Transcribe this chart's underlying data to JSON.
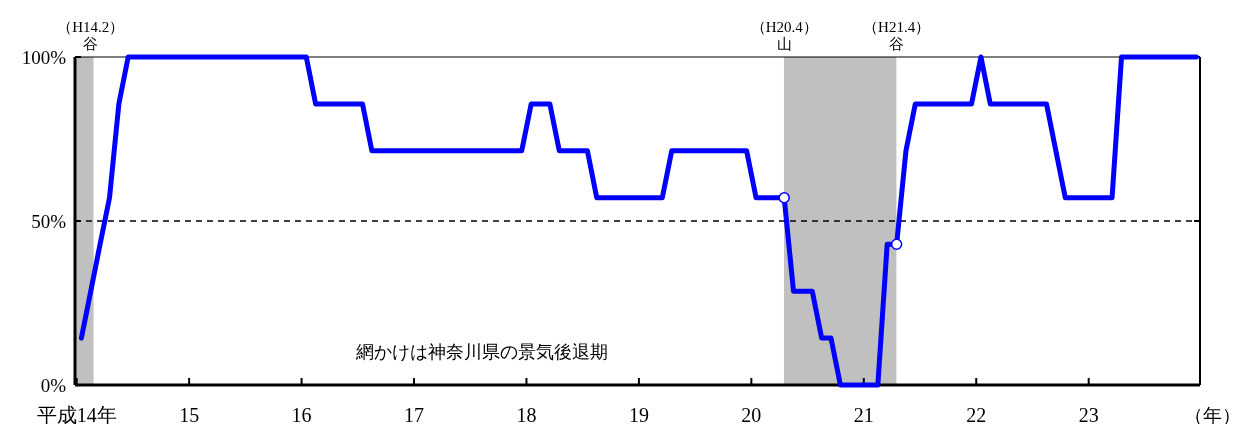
{
  "chart_data": {
    "type": "line",
    "xlabel": "（年）",
    "x": [
      14.042,
      14.125,
      14.208,
      14.292,
      14.375,
      14.458,
      16.042,
      16.125,
      16.542,
      16.625,
      17.958,
      18.042,
      18.208,
      18.292,
      18.542,
      18.625,
      19.208,
      19.292,
      19.958,
      20.042,
      20.292,
      20.375,
      20.542,
      20.625,
      20.708,
      20.792,
      21.125,
      21.208,
      21.292,
      21.375,
      21.458,
      21.958,
      22.042,
      22.125,
      22.625,
      22.708,
      22.792,
      23.208,
      23.292,
      23.958
    ],
    "series": [
      {
        "color": "#0000ff",
        "values": [
          14.3,
          28.6,
          42.9,
          57.1,
          85.7,
          100,
          100,
          85.7,
          85.7,
          71.4,
          71.4,
          85.7,
          85.7,
          71.4,
          71.4,
          57.1,
          57.1,
          71.4,
          71.4,
          57.1,
          57.1,
          28.6,
          28.6,
          14.3,
          14.3,
          0,
          0,
          42.9,
          42.9,
          71.4,
          85.7,
          85.7,
          100,
          85.7,
          85.7,
          71.4,
          57.1,
          57.1,
          100,
          100
        ]
      },
      {
        "type": "scatter",
        "marker": "circle",
        "color": "#0000ff",
        "x": [
          20.292,
          21.292
        ],
        "values": [
          57.1,
          42.9
        ]
      }
    ],
    "xlim": [
      13.985,
      23.99
    ],
    "xticks": [
      {
        "value": 14,
        "label": "平成14年"
      },
      15,
      16,
      17,
      18,
      19,
      20,
      21,
      22,
      23
    ],
    "ylim": [
      0,
      100
    ],
    "yticks": [
      {
        "value": 0,
        "label": "0%"
      },
      {
        "value": 50,
        "label": "50%"
      },
      {
        "value": 100,
        "label": "100%"
      }
    ],
    "bands": [
      {
        "axis": "x",
        "from": 13.985,
        "to": 14.15,
        "color": "#c0c0c0"
      },
      {
        "axis": "x",
        "from": 20.29,
        "to": 21.29,
        "color": "#c0c0c0"
      }
    ],
    "ref_lines": [
      {
        "axis": "y",
        "value": 50,
        "color": "#000000",
        "line_style": "dashed"
      }
    ],
    "annotations": [
      {
        "text": "（H14.2）",
        "x": 14.125,
        "y": 100
      },
      {
        "text": "谷",
        "x": 14.125,
        "y": 100
      },
      {
        "text": "（H20.4）",
        "x": 20.292,
        "y": 100
      },
      {
        "text": "山",
        "x": 20.292,
        "y": 100
      },
      {
        "text": "（H21.4）",
        "x": 21.292,
        "y": 100
      },
      {
        "text": "谷",
        "x": 21.292,
        "y": 100
      },
      "網かけは神奈川県の景気後退期"
    ]
  }
}
